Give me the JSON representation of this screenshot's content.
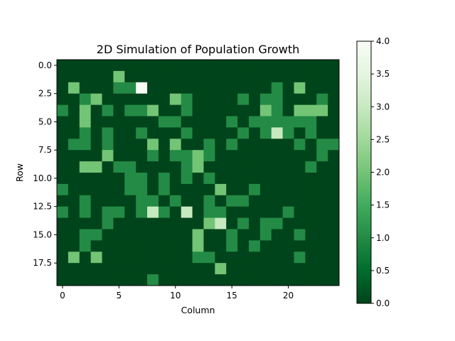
{
  "chart_data": {
    "type": "heatmap",
    "title": "2D Simulation of Population Growth",
    "xlabel": "Column",
    "ylabel": "Row",
    "rows": 20,
    "cols": 25,
    "xticks": [
      0,
      5,
      10,
      15,
      20
    ],
    "xtick_labels": [
      "0",
      "5",
      "10",
      "15",
      "20"
    ],
    "yticks": [
      0,
      2.5,
      5,
      7.5,
      10,
      12.5,
      15,
      17.5
    ],
    "ytick_labels": [
      "0.0",
      "2.5",
      "5.0",
      "7.5",
      "10.0",
      "12.5",
      "15.0",
      "17.5"
    ],
    "colormap": "Greens_r",
    "vmin": 0,
    "vmax": 4,
    "colorbar_ticks": [
      0,
      0.5,
      1,
      1.5,
      2,
      2.5,
      3,
      3.5,
      4
    ],
    "colorbar_tick_labels": [
      "0.0",
      "0.5",
      "1.0",
      "1.5",
      "2.0",
      "2.5",
      "3.0",
      "3.5",
      "4.0"
    ],
    "values": [
      [
        0,
        0,
        0,
        0,
        0,
        0,
        0,
        0,
        0,
        0,
        0,
        0,
        0,
        0,
        0,
        0,
        0,
        0,
        0,
        0,
        0,
        0,
        0,
        0,
        0
      ],
      [
        0,
        0,
        0,
        0,
        0,
        2,
        0,
        0,
        0,
        0,
        0,
        0,
        0,
        0,
        0,
        0,
        0,
        0,
        0,
        0,
        0,
        0,
        0,
        0,
        0
      ],
      [
        0,
        2,
        0,
        0,
        0,
        1,
        1,
        4,
        0,
        0,
        0,
        0,
        0,
        0,
        0,
        0,
        0,
        0,
        0,
        1,
        0,
        2,
        0,
        0,
        0
      ],
      [
        0,
        0,
        1,
        2,
        0,
        0,
        0,
        0,
        0,
        0,
        2,
        1,
        0,
        0,
        0,
        0,
        1,
        0,
        1,
        1,
        0,
        0,
        0,
        1,
        0
      ],
      [
        1,
        0,
        2,
        0,
        1,
        0,
        1,
        1,
        2,
        0,
        0,
        1,
        0,
        0,
        0,
        0,
        0,
        0,
        2,
        1,
        0,
        2,
        2,
        2,
        0
      ],
      [
        0,
        0,
        2,
        0,
        0,
        0,
        0,
        0,
        0,
        1,
        1,
        0,
        0,
        0,
        0,
        1,
        0,
        1,
        1,
        1,
        1,
        1,
        1,
        0,
        0
      ],
      [
        0,
        0,
        1,
        0,
        1,
        0,
        0,
        1,
        0,
        0,
        0,
        1,
        0,
        0,
        0,
        0,
        1,
        0,
        1,
        3,
        1,
        0,
        1,
        0,
        0
      ],
      [
        0,
        1,
        1,
        0,
        1,
        0,
        0,
        0,
        2,
        0,
        2,
        0,
        0,
        1,
        0,
        1,
        0,
        0,
        0,
        0,
        0,
        1,
        0,
        1,
        1
      ],
      [
        0,
        0,
        0,
        0,
        2,
        0,
        0,
        0,
        1,
        0,
        1,
        1,
        2,
        1,
        0,
        0,
        0,
        0,
        0,
        0,
        0,
        0,
        0,
        1,
        0
      ],
      [
        0,
        0,
        2,
        2,
        0,
        1,
        1,
        0,
        0,
        0,
        0,
        1,
        2,
        0,
        0,
        0,
        0,
        0,
        0,
        0,
        0,
        0,
        1,
        0,
        0
      ],
      [
        0,
        0,
        0,
        0,
        0,
        0,
        1,
        1,
        0,
        1,
        0,
        1,
        0,
        1,
        0,
        0,
        0,
        0,
        0,
        0,
        0,
        0,
        0,
        0,
        0
      ],
      [
        1,
        0,
        0,
        0,
        0,
        0,
        1,
        1,
        0,
        1,
        0,
        0,
        0,
        0,
        2,
        0,
        0,
        1,
        0,
        0,
        0,
        0,
        0,
        0,
        0
      ],
      [
        0,
        0,
        1,
        0,
        0,
        0,
        0,
        1,
        1,
        0,
        1,
        0,
        0,
        1,
        0,
        1,
        1,
        0,
        0,
        0,
        0,
        0,
        0,
        0,
        0
      ],
      [
        1,
        0,
        1,
        0,
        1,
        1,
        0,
        1,
        3,
        1,
        0,
        3,
        0,
        1,
        1,
        0,
        0,
        0,
        0,
        0,
        1,
        0,
        0,
        0,
        0
      ],
      [
        0,
        0,
        0,
        0,
        1,
        0,
        0,
        0,
        0,
        0,
        0,
        0,
        0,
        2,
        3,
        0,
        1,
        0,
        1,
        1,
        0,
        0,
        0,
        0,
        0
      ],
      [
        0,
        0,
        1,
        1,
        0,
        0,
        0,
        0,
        0,
        0,
        0,
        0,
        2,
        0,
        0,
        1,
        0,
        0,
        1,
        0,
        0,
        1,
        0,
        0,
        0
      ],
      [
        0,
        0,
        1,
        0,
        0,
        0,
        0,
        0,
        0,
        0,
        0,
        0,
        2,
        0,
        0,
        1,
        0,
        1,
        0,
        0,
        0,
        0,
        0,
        0,
        0
      ],
      [
        0,
        2,
        0,
        2,
        0,
        0,
        0,
        0,
        0,
        0,
        0,
        0,
        1,
        1,
        0,
        0,
        0,
        0,
        0,
        0,
        0,
        1,
        0,
        0,
        0
      ],
      [
        0,
        0,
        0,
        0,
        0,
        0,
        0,
        0,
        0,
        0,
        0,
        0,
        0,
        0,
        2,
        0,
        0,
        0,
        0,
        0,
        0,
        0,
        0,
        0,
        0
      ],
      [
        0,
        0,
        0,
        0,
        0,
        0,
        0,
        0,
        1,
        0,
        0,
        0,
        0,
        0,
        0,
        0,
        0,
        0,
        0,
        0,
        0,
        0,
        0,
        0,
        0
      ]
    ]
  }
}
